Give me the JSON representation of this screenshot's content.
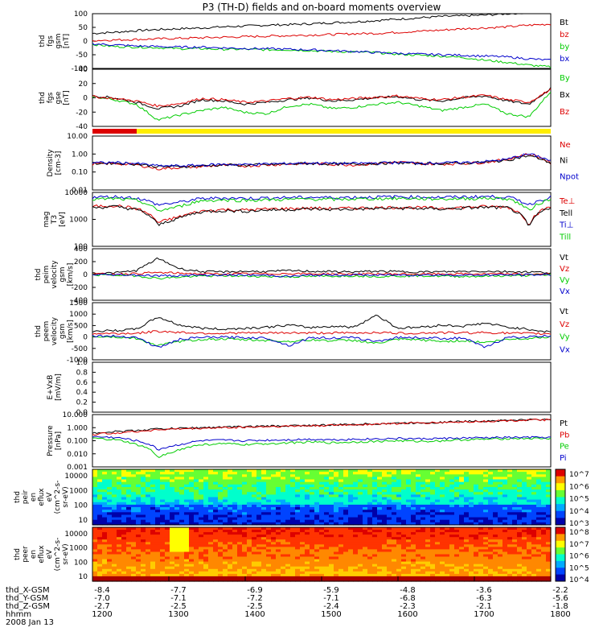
{
  "chart_data": {
    "type": "line",
    "title": "P3 (TH-D) fields and on-board moments overview",
    "x_ticks": [
      "1200",
      "1300",
      "1400",
      "1500",
      "1600",
      "1700",
      "1800"
    ],
    "panels": [
      {
        "id": "fgs-gsm",
        "ylabel": [
          "thd",
          "fgs",
          "gsm",
          "[nT]"
        ],
        "yticks": [
          "100",
          "50",
          "0",
          "-50",
          "-100"
        ],
        "ylim": [
          -100,
          100
        ],
        "series": [
          {
            "name": "Bt",
            "color": "#000000",
            "values": [
              28,
              32,
              38,
              42,
              45,
              48,
              52,
              55,
              58,
              60,
              63,
              67,
              70,
              75,
              80,
              85,
              90,
              92,
              95,
              100,
              105,
              108
            ]
          },
          {
            "name": "bz",
            "color": "#dd0000",
            "values": [
              2,
              4,
              6,
              8,
              10,
              12,
              14,
              16,
              18,
              20,
              22,
              24,
              27,
              28,
              32,
              36,
              40,
              45,
              48,
              52,
              58,
              62
            ]
          },
          {
            "name": "by",
            "color": "#00cc00",
            "values": [
              -12,
              -20,
              -22,
              -24,
              -28,
              -28,
              -30,
              -30,
              -32,
              -32,
              -35,
              -38,
              -40,
              -42,
              -48,
              -52,
              -55,
              -60,
              -70,
              -78,
              -88,
              -95
            ]
          },
          {
            "name": "bx",
            "color": "#0000cc",
            "values": [
              -10,
              -14,
              -18,
              -20,
              -22,
              -22,
              -25,
              -27,
              -28,
              -30,
              -32,
              -35,
              -38,
              -42,
              -45,
              -48,
              -50,
              -52,
              -55,
              -58,
              -65,
              -70
            ]
          }
        ]
      },
      {
        "id": "fgs-gse",
        "ylabel": [
          "thd",
          "fgs",
          "gse",
          "[nT]"
        ],
        "yticks": [
          "40",
          "20",
          "0",
          "-20",
          "-40"
        ],
        "ylim": [
          -50,
          40
        ],
        "series": [
          {
            "name": "By",
            "color": "#00cc00",
            "values": [
              -3,
              -8,
              -15,
              -40,
              -32,
              -25,
              -20,
              -28,
              -30,
              -18,
              -15,
              -22,
              -20,
              -15,
              -12,
              -18,
              -25,
              -20,
              -15,
              -30,
              -35,
              5
            ]
          },
          {
            "name": "Bx",
            "color": "#000000",
            "values": [
              -2,
              -5,
              -12,
              -22,
              -18,
              -8,
              -10,
              -15,
              -12,
              -8,
              -5,
              -10,
              -8,
              -5,
              -3,
              -8,
              -10,
              -5,
              -2,
              -10,
              -15,
              10
            ]
          },
          {
            "name": "Bz",
            "color": "#dd0000",
            "values": [
              -3,
              -6,
              -10,
              -18,
              -14,
              -6,
              -8,
              -12,
              -10,
              -6,
              -4,
              -8,
              -6,
              -4,
              -2,
              -6,
              -8,
              -4,
              -1,
              -8,
              -12,
              8
            ]
          }
        ]
      },
      {
        "id": "density",
        "ylabel": [
          "Density",
          "[cm-3]"
        ],
        "yticks": [
          "10.00",
          "1.00",
          "0.10",
          "0.01"
        ],
        "ylim": [
          0.01,
          10
        ],
        "scale": "log",
        "series": [
          {
            "name": "Ne",
            "color": "#dd0000",
            "values": [
              0.28,
              0.3,
              0.25,
              0.15,
              0.18,
              0.2,
              0.24,
              0.22,
              0.25,
              0.28,
              0.3,
              0.27,
              0.25,
              0.3,
              0.35,
              0.3,
              0.28,
              0.3,
              0.35,
              0.5,
              1.0,
              0.3
            ]
          },
          {
            "name": "Ni",
            "color": "#000000",
            "values": [
              0.3,
              0.32,
              0.28,
              0.2,
              0.2,
              0.22,
              0.25,
              0.24,
              0.26,
              0.28,
              0.3,
              0.28,
              0.28,
              0.3,
              0.32,
              0.3,
              0.3,
              0.32,
              0.35,
              0.45,
              0.8,
              0.3
            ]
          },
          {
            "name": "Npot",
            "color": "#0000cc",
            "values": [
              0.32,
              0.34,
              0.3,
              0.22,
              0.22,
              0.24,
              0.27,
              0.26,
              0.28,
              0.3,
              0.32,
              0.3,
              0.3,
              0.32,
              0.34,
              0.32,
              0.32,
              0.34,
              0.38,
              0.5,
              1.0,
              0.4
            ]
          }
        ]
      },
      {
        "id": "mag-temp",
        "ylabel": [
          "mag",
          "T3",
          "[eV]"
        ],
        "yticks": [
          "10000",
          "1000",
          "100"
        ],
        "ylim": [
          30,
          12000
        ],
        "scale": "log",
        "series": [
          {
            "name": "Te⊥",
            "color": "#dd0000",
            "values": [
              2500,
              2800,
              2000,
              400,
              800,
              1500,
              1800,
              1700,
              1900,
              2000,
              2100,
              2000,
              2100,
              2200,
              2300,
              2200,
              2100,
              2300,
              2500,
              2400,
              300,
              2500
            ]
          },
          {
            "name": "Tell",
            "color": "#000000",
            "values": [
              2200,
              2500,
              1800,
              300,
              700,
              1400,
              1600,
              1500,
              1700,
              1800,
              1900,
              1800,
              1900,
              2000,
              2100,
              2000,
              1900,
              2100,
              2300,
              2200,
              200,
              2300
            ]
          },
          {
            "name": "Ti⊥",
            "color": "#0000cc",
            "values": [
              7000,
              7500,
              6500,
              3000,
              4000,
              6000,
              6500,
              6200,
              6500,
              6800,
              7000,
              6800,
              7000,
              7200,
              7500,
              7200,
              7000,
              7300,
              7600,
              7200,
              3000,
              7000
            ]
          },
          {
            "name": "Till",
            "color": "#00cc00",
            "values": [
              5500,
              6000,
              5000,
              1500,
              2500,
              4800,
              5200,
              5000,
              5300,
              5500,
              5800,
              5500,
              5800,
              6000,
              6200,
              6000,
              5800,
              6000,
              6300,
              6000,
              1500,
              5800
            ]
          }
        ]
      },
      {
        "id": "peim-vel",
        "ylabel": [
          "thd",
          "peim",
          "velocity",
          "gsm",
          "[km/s]"
        ],
        "yticks": [
          "400",
          "200",
          "0",
          "-200",
          "-400"
        ],
        "ylim": [
          -400,
          400
        ],
        "series": [
          {
            "name": "Vt",
            "color": "#000000",
            "values": [
              20,
              25,
              60,
              250,
              90,
              45,
              40,
              50,
              45,
              60,
              50,
              45,
              40,
              50,
              45,
              40,
              42,
              48,
              50,
              45,
              40,
              30
            ]
          },
          {
            "name": "Vz",
            "color": "#dd0000",
            "values": [
              5,
              8,
              15,
              30,
              20,
              10,
              8,
              12,
              10,
              15,
              10,
              8,
              6,
              10,
              8,
              6,
              8,
              10,
              8,
              6,
              5,
              4
            ]
          },
          {
            "name": "Vy",
            "color": "#00cc00",
            "values": [
              -5,
              -8,
              -20,
              -60,
              -40,
              -25,
              -20,
              -25,
              -30,
              -35,
              -30,
              -25,
              -20,
              -30,
              -25,
              -20,
              -25,
              -30,
              -25,
              -20,
              -15,
              -5
            ]
          },
          {
            "name": "Vx",
            "color": "#0000cc",
            "values": [
              -2,
              -4,
              -8,
              -20,
              -15,
              -10,
              -8,
              -10,
              -12,
              -30,
              -10,
              -8,
              -6,
              -10,
              -8,
              -6,
              -8,
              -10,
              -8,
              -6,
              -5,
              -2
            ]
          }
        ]
      },
      {
        "id": "peem-vel",
        "ylabel": [
          "thd",
          "peem",
          "velocity",
          "gsm",
          "[km/s]"
        ],
        "yticks": [
          "1500",
          "1000",
          "500",
          "0",
          "-500",
          "-1000"
        ],
        "ylim": [
          -1200,
          1600
        ],
        "series": [
          {
            "name": "Vt",
            "color": "#000000",
            "values": [
              200,
              230,
              300,
              900,
              500,
              350,
              300,
              350,
              400,
              500,
              380,
              450,
              400,
              1000,
              350,
              400,
              500,
              450,
              600,
              400,
              300,
              150
            ]
          },
          {
            "name": "Vz",
            "color": "#dd0000",
            "values": [
              80,
              90,
              100,
              200,
              150,
              110,
              100,
              120,
              110,
              130,
              110,
              120,
              110,
              150,
              100,
              110,
              130,
              120,
              140,
              110,
              90,
              80
            ]
          },
          {
            "name": "Vy",
            "color": "#00cc00",
            "values": [
              -50,
              -80,
              -150,
              -500,
              -300,
              -200,
              -180,
              -220,
              -250,
              -300,
              -220,
              -260,
              -240,
              -400,
              -200,
              -220,
              -300,
              -260,
              -350,
              -200,
              -150,
              -50
            ]
          },
          {
            "name": "Vx",
            "color": "#0000cc",
            "values": [
              -20,
              -40,
              -80,
              -600,
              -200,
              -100,
              -90,
              -110,
              -130,
              -500,
              -110,
              -130,
              -120,
              -300,
              -100,
              -110,
              -150,
              -130,
              -600,
              -100,
              -80,
              -20
            ]
          }
        ]
      },
      {
        "id": "e-vxb",
        "ylabel": [
          "E+VxB",
          "[mV/m]"
        ],
        "yticks": [
          "1.0",
          "0.8",
          "0.6",
          "0.4",
          "0.2",
          "0.0"
        ],
        "ylim": [
          0,
          1
        ],
        "series": []
      },
      {
        "id": "pressure",
        "ylabel": [
          "Pressure",
          "[nPa]"
        ],
        "yticks": [
          "10.000",
          "1.000",
          "0.100",
          "0.010",
          "0.001"
        ],
        "ylim": [
          0.001,
          10
        ],
        "scale": "log",
        "series": [
          {
            "name": "Pt",
            "color": "#000000",
            "values": [
              0.4,
              0.5,
              0.6,
              0.8,
              0.9,
              1.0,
              1.1,
              1.2,
              1.3,
              1.4,
              1.5,
              1.6,
              1.8,
              2.0,
              2.2,
              2.4,
              2.6,
              3.0,
              3.3,
              3.6,
              4.0,
              4.2
            ]
          },
          {
            "name": "Pb",
            "color": "#dd0000",
            "values": [
              0.3,
              0.4,
              0.5,
              0.7,
              0.8,
              0.9,
              1.0,
              1.1,
              1.2,
              1.3,
              1.4,
              1.5,
              1.7,
              1.9,
              2.1,
              2.3,
              2.5,
              2.8,
              3.1,
              3.4,
              3.8,
              4.0
            ]
          },
          {
            "name": "Pe",
            "color": "#00cc00",
            "values": [
              0.15,
              0.12,
              0.05,
              0.004,
              0.02,
              0.05,
              0.06,
              0.05,
              0.06,
              0.07,
              0.08,
              0.07,
              0.08,
              0.09,
              0.1,
              0.09,
              0.1,
              0.12,
              0.13,
              0.15,
              0.15,
              0.15
            ]
          },
          {
            "name": "Pi",
            "color": "#0000cc",
            "values": [
              0.2,
              0.18,
              0.1,
              0.02,
              0.05,
              0.1,
              0.11,
              0.1,
              0.11,
              0.12,
              0.13,
              0.12,
              0.13,
              0.14,
              0.15,
              0.14,
              0.15,
              0.16,
              0.17,
              0.18,
              0.18,
              0.18
            ]
          }
        ]
      }
    ],
    "spectrograms": [
      {
        "id": "peir",
        "ylabel": [
          "thd",
          "peir",
          "en",
          "eflux",
          "eV",
          "(cm^2-s-",
          "sr-eV)"
        ],
        "yticks": [
          "10000",
          "1000",
          "100",
          "10"
        ],
        "colorbar": [
          "10^7",
          "10^6",
          "10^5",
          "10^4",
          "10^3"
        ]
      },
      {
        "id": "peer",
        "ylabel": [
          "thd",
          "peer",
          "en",
          "eflux",
          "eV",
          "(cm^2-s-",
          "sr-eV)"
        ],
        "yticks": [
          "10000",
          "1000",
          "100",
          "10"
        ],
        "colorbar": [
          "10^8",
          "10^7",
          "10^6",
          "10^5",
          "10^4"
        ]
      }
    ],
    "position_labels": [
      "thd_X-GSM",
      "thd_Y-GSM",
      "thd_Z-GSM",
      "hhmm",
      "2008 Jan 13"
    ],
    "position_rows": [
      [
        "-8.4",
        "-7.7",
        "-6.9",
        "-5.9",
        "-4.8",
        "-3.6",
        "-2.2"
      ],
      [
        "-7.0",
        "-7.1",
        "-7.2",
        "-7.1",
        "-6.8",
        "-6.3",
        "-5.6"
      ],
      [
        "-2.7",
        "-2.5",
        "-2.5",
        "-2.4",
        "-2.3",
        "-2.1",
        "-1.8"
      ],
      [
        "1200",
        "1300",
        "1400",
        "1500",
        "1600",
        "1700",
        "1800"
      ]
    ]
  }
}
